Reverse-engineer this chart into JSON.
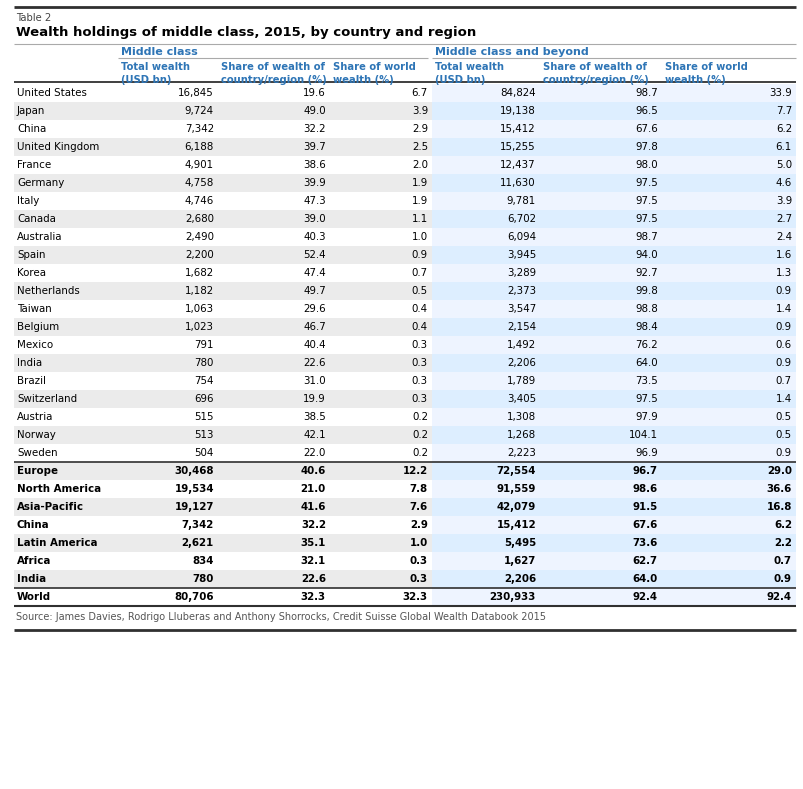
{
  "table_label": "Table 2",
  "title": "Wealth holdings of middle class, 2015, by country and region",
  "source": "Source: James Davies, Rodrigo Lluberas and Anthony Shorrocks, Credit Suisse Global Wealth Databook 2015",
  "rows": [
    [
      "United States",
      "16,845",
      "19.6",
      "6.7",
      "84,824",
      "98.7",
      "33.9"
    ],
    [
      "Japan",
      "9,724",
      "49.0",
      "3.9",
      "19,138",
      "96.5",
      "7.7"
    ],
    [
      "China",
      "7,342",
      "32.2",
      "2.9",
      "15,412",
      "67.6",
      "6.2"
    ],
    [
      "United Kingdom",
      "6,188",
      "39.7",
      "2.5",
      "15,255",
      "97.8",
      "6.1"
    ],
    [
      "France",
      "4,901",
      "38.6",
      "2.0",
      "12,437",
      "98.0",
      "5.0"
    ],
    [
      "Germany",
      "4,758",
      "39.9",
      "1.9",
      "11,630",
      "97.5",
      "4.6"
    ],
    [
      "Italy",
      "4,746",
      "47.3",
      "1.9",
      "9,781",
      "97.5",
      "3.9"
    ],
    [
      "Canada",
      "2,680",
      "39.0",
      "1.1",
      "6,702",
      "97.5",
      "2.7"
    ],
    [
      "Australia",
      "2,490",
      "40.3",
      "1.0",
      "6,094",
      "98.7",
      "2.4"
    ],
    [
      "Spain",
      "2,200",
      "52.4",
      "0.9",
      "3,945",
      "94.0",
      "1.6"
    ],
    [
      "Korea",
      "1,682",
      "47.4",
      "0.7",
      "3,289",
      "92.7",
      "1.3"
    ],
    [
      "Netherlands",
      "1,182",
      "49.7",
      "0.5",
      "2,373",
      "99.8",
      "0.9"
    ],
    [
      "Taiwan",
      "1,063",
      "29.6",
      "0.4",
      "3,547",
      "98.8",
      "1.4"
    ],
    [
      "Belgium",
      "1,023",
      "46.7",
      "0.4",
      "2,154",
      "98.4",
      "0.9"
    ],
    [
      "Mexico",
      "791",
      "40.4",
      "0.3",
      "1,492",
      "76.2",
      "0.6"
    ],
    [
      "India",
      "780",
      "22.6",
      "0.3",
      "2,206",
      "64.0",
      "0.9"
    ],
    [
      "Brazil",
      "754",
      "31.0",
      "0.3",
      "1,789",
      "73.5",
      "0.7"
    ],
    [
      "Switzerland",
      "696",
      "19.9",
      "0.3",
      "3,405",
      "97.5",
      "1.4"
    ],
    [
      "Austria",
      "515",
      "38.5",
      "0.2",
      "1,308",
      "97.9",
      "0.5"
    ],
    [
      "Norway",
      "513",
      "42.1",
      "0.2",
      "1,268",
      "104.1",
      "0.5"
    ],
    [
      "Sweden",
      "504",
      "22.0",
      "0.2",
      "2,223",
      "96.9",
      "0.9"
    ],
    [
      "Europe",
      "30,468",
      "40.6",
      "12.2",
      "72,554",
      "96.7",
      "29.0"
    ],
    [
      "North America",
      "19,534",
      "21.0",
      "7.8",
      "91,559",
      "98.6",
      "36.6"
    ],
    [
      "Asia-Pacific",
      "19,127",
      "41.6",
      "7.6",
      "42,079",
      "91.5",
      "16.8"
    ],
    [
      "China",
      "7,342",
      "32.2",
      "2.9",
      "15,412",
      "67.6",
      "6.2"
    ],
    [
      "Latin America",
      "2,621",
      "35.1",
      "1.0",
      "5,495",
      "73.6",
      "2.2"
    ],
    [
      "Africa",
      "834",
      "32.1",
      "0.3",
      "1,627",
      "62.7",
      "0.7"
    ],
    [
      "India",
      "780",
      "22.6",
      "0.3",
      "2,206",
      "64.0",
      "0.9"
    ],
    [
      "World",
      "80,706",
      "32.3",
      "32.3",
      "230,933",
      "92.4",
      "92.4"
    ]
  ],
  "bold_rows": [
    21,
    22,
    23,
    24,
    25,
    26,
    27,
    28
  ],
  "world_row": 28,
  "header_color": "#2E75B6",
  "alt_row_color": "#EBEBEB",
  "beyond_alt_color": "#DDEEFF",
  "beyond_color": "#EEF4FF",
  "white_row_color": "#FFFFFF",
  "thick_line_color": "#303030",
  "thin_line_color": "#AAAAAA",
  "background_color": "#FFFFFF"
}
